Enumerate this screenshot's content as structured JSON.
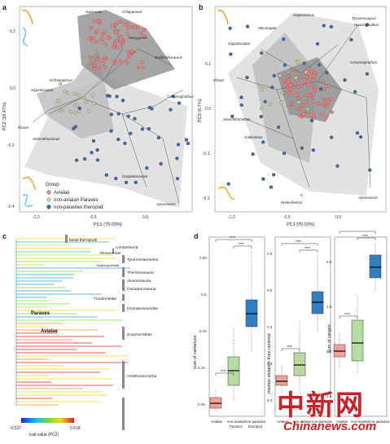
{
  "panels": {
    "a": {
      "label": "a",
      "xlabel": "PC1 (70.03%)",
      "ylabel": "PC2 (16.47%)",
      "xticks": [
        "-1.0",
        "-0.5",
        "0.0"
      ],
      "yticks": [
        "0.2",
        "0.0",
        "-0.2",
        "-0.4"
      ],
      "taxa": [
        "Sapeornis",
        "Chiappeavis",
        "Pterygornis",
        "Eoidendrosaurus",
        "Archaeopteryx",
        "Gigantoraptor",
        "Compsognathus",
        "Khaan",
        "Sinornithomimus",
        "Daspletosaurus",
        "Aucasaurus"
      ],
      "legend": {
        "title": "Group",
        "items": [
          {
            "label": "Avialae",
            "color": "#f08080"
          },
          {
            "label": "non-avialan Paraves",
            "color": "#b5d9a0"
          },
          {
            "label": "non-paravian theropod",
            "color": "#2f6fb0"
          }
        ]
      }
    },
    "b": {
      "label": "b",
      "xlabel": "PC1 (70.03%)",
      "ylabel": "PC3 (6.7%)",
      "xticks": [
        "-1.0",
        "-0.5",
        "0.0"
      ],
      "yticks": [
        "0.1",
        "0.0",
        "-0.1",
        "-0.2"
      ],
      "taxa": [
        "Haplocheirus",
        "Tyrannosaurus",
        "Huaxiagnathus",
        "Microraptor",
        "Gigantoraptor",
        "Compsognathus",
        "Khaan",
        "Sinornithomimus",
        "Gallimimus",
        "Deinocheirus",
        "Aucasaurus",
        "Yi"
      ]
    },
    "c": {
      "label": "c",
      "clades": [
        "basal theropods",
        "Ceratosauria",
        "Allosauridae",
        "Tyrannosauroidea",
        "Compsognathidae",
        "Therizinosauria",
        "Alvarezsauria",
        "Oviraptorosauria",
        "Troodontidae",
        "Dromaeosauridae",
        "Enantiornithes",
        "Ornithuromorpha"
      ],
      "node_labels": [
        "Paraves",
        "Avialae"
      ],
      "colorbar": {
        "min": "-0.537",
        "max": "0.618",
        "label": "trait value (PC2)"
      }
    },
    "d": {
      "label": "d",
      "subplots": [
        {
          "ylabel": "sum of variances",
          "yticks": [
            "0.25",
            "0.2",
            "0.15",
            "0.10",
            "0.05"
          ]
        },
        {
          "ylabel": "median distance from centroid",
          "yticks": [
            "0.6",
            "0.5",
            "0.4",
            "0.3",
            "0.2"
          ]
        },
        {
          "ylabel": "sum of ranges",
          "yticks": [
            "3.0",
            "2.5",
            "2.0",
            "1.5"
          ]
        }
      ],
      "groups": [
        "Avialae",
        "non-avialan Paraves",
        "non-paravian theropod"
      ],
      "xlabels": [
        "Avialae",
        "non-avialan\nParaves",
        "non-paravian\ntheropod"
      ],
      "sig": "****",
      "colors": {
        "Avialae": "#f4a09a",
        "Paraves": "#b7dca2",
        "theropod": "#2f7fc1"
      }
    }
  },
  "watermark": {
    "cn": "中新网",
    "en": "Chinanews.com"
  }
}
